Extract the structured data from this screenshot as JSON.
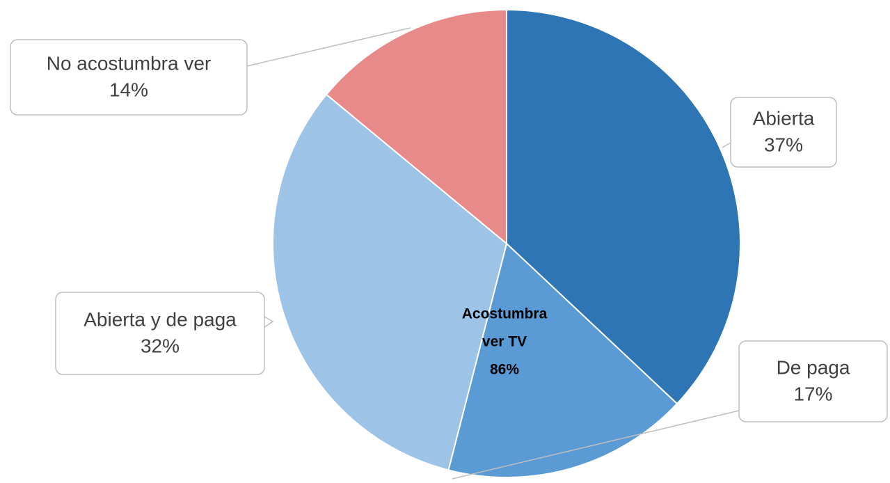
{
  "chart_data": {
    "type": "pie",
    "categories": [
      "Abierta",
      "De paga",
      "Abierta y de paga",
      "No acostumbra ver"
    ],
    "values": [
      37,
      17,
      32,
      14
    ],
    "value_labels": [
      "37%",
      "17%",
      "32%",
      "14%"
    ],
    "colors": [
      "#2e75b6",
      "#5b9bd5",
      "#9dc3e6",
      "#e88a8a"
    ],
    "annotation": [
      "Acostumbra",
      "ver TV",
      "86%"
    ]
  }
}
